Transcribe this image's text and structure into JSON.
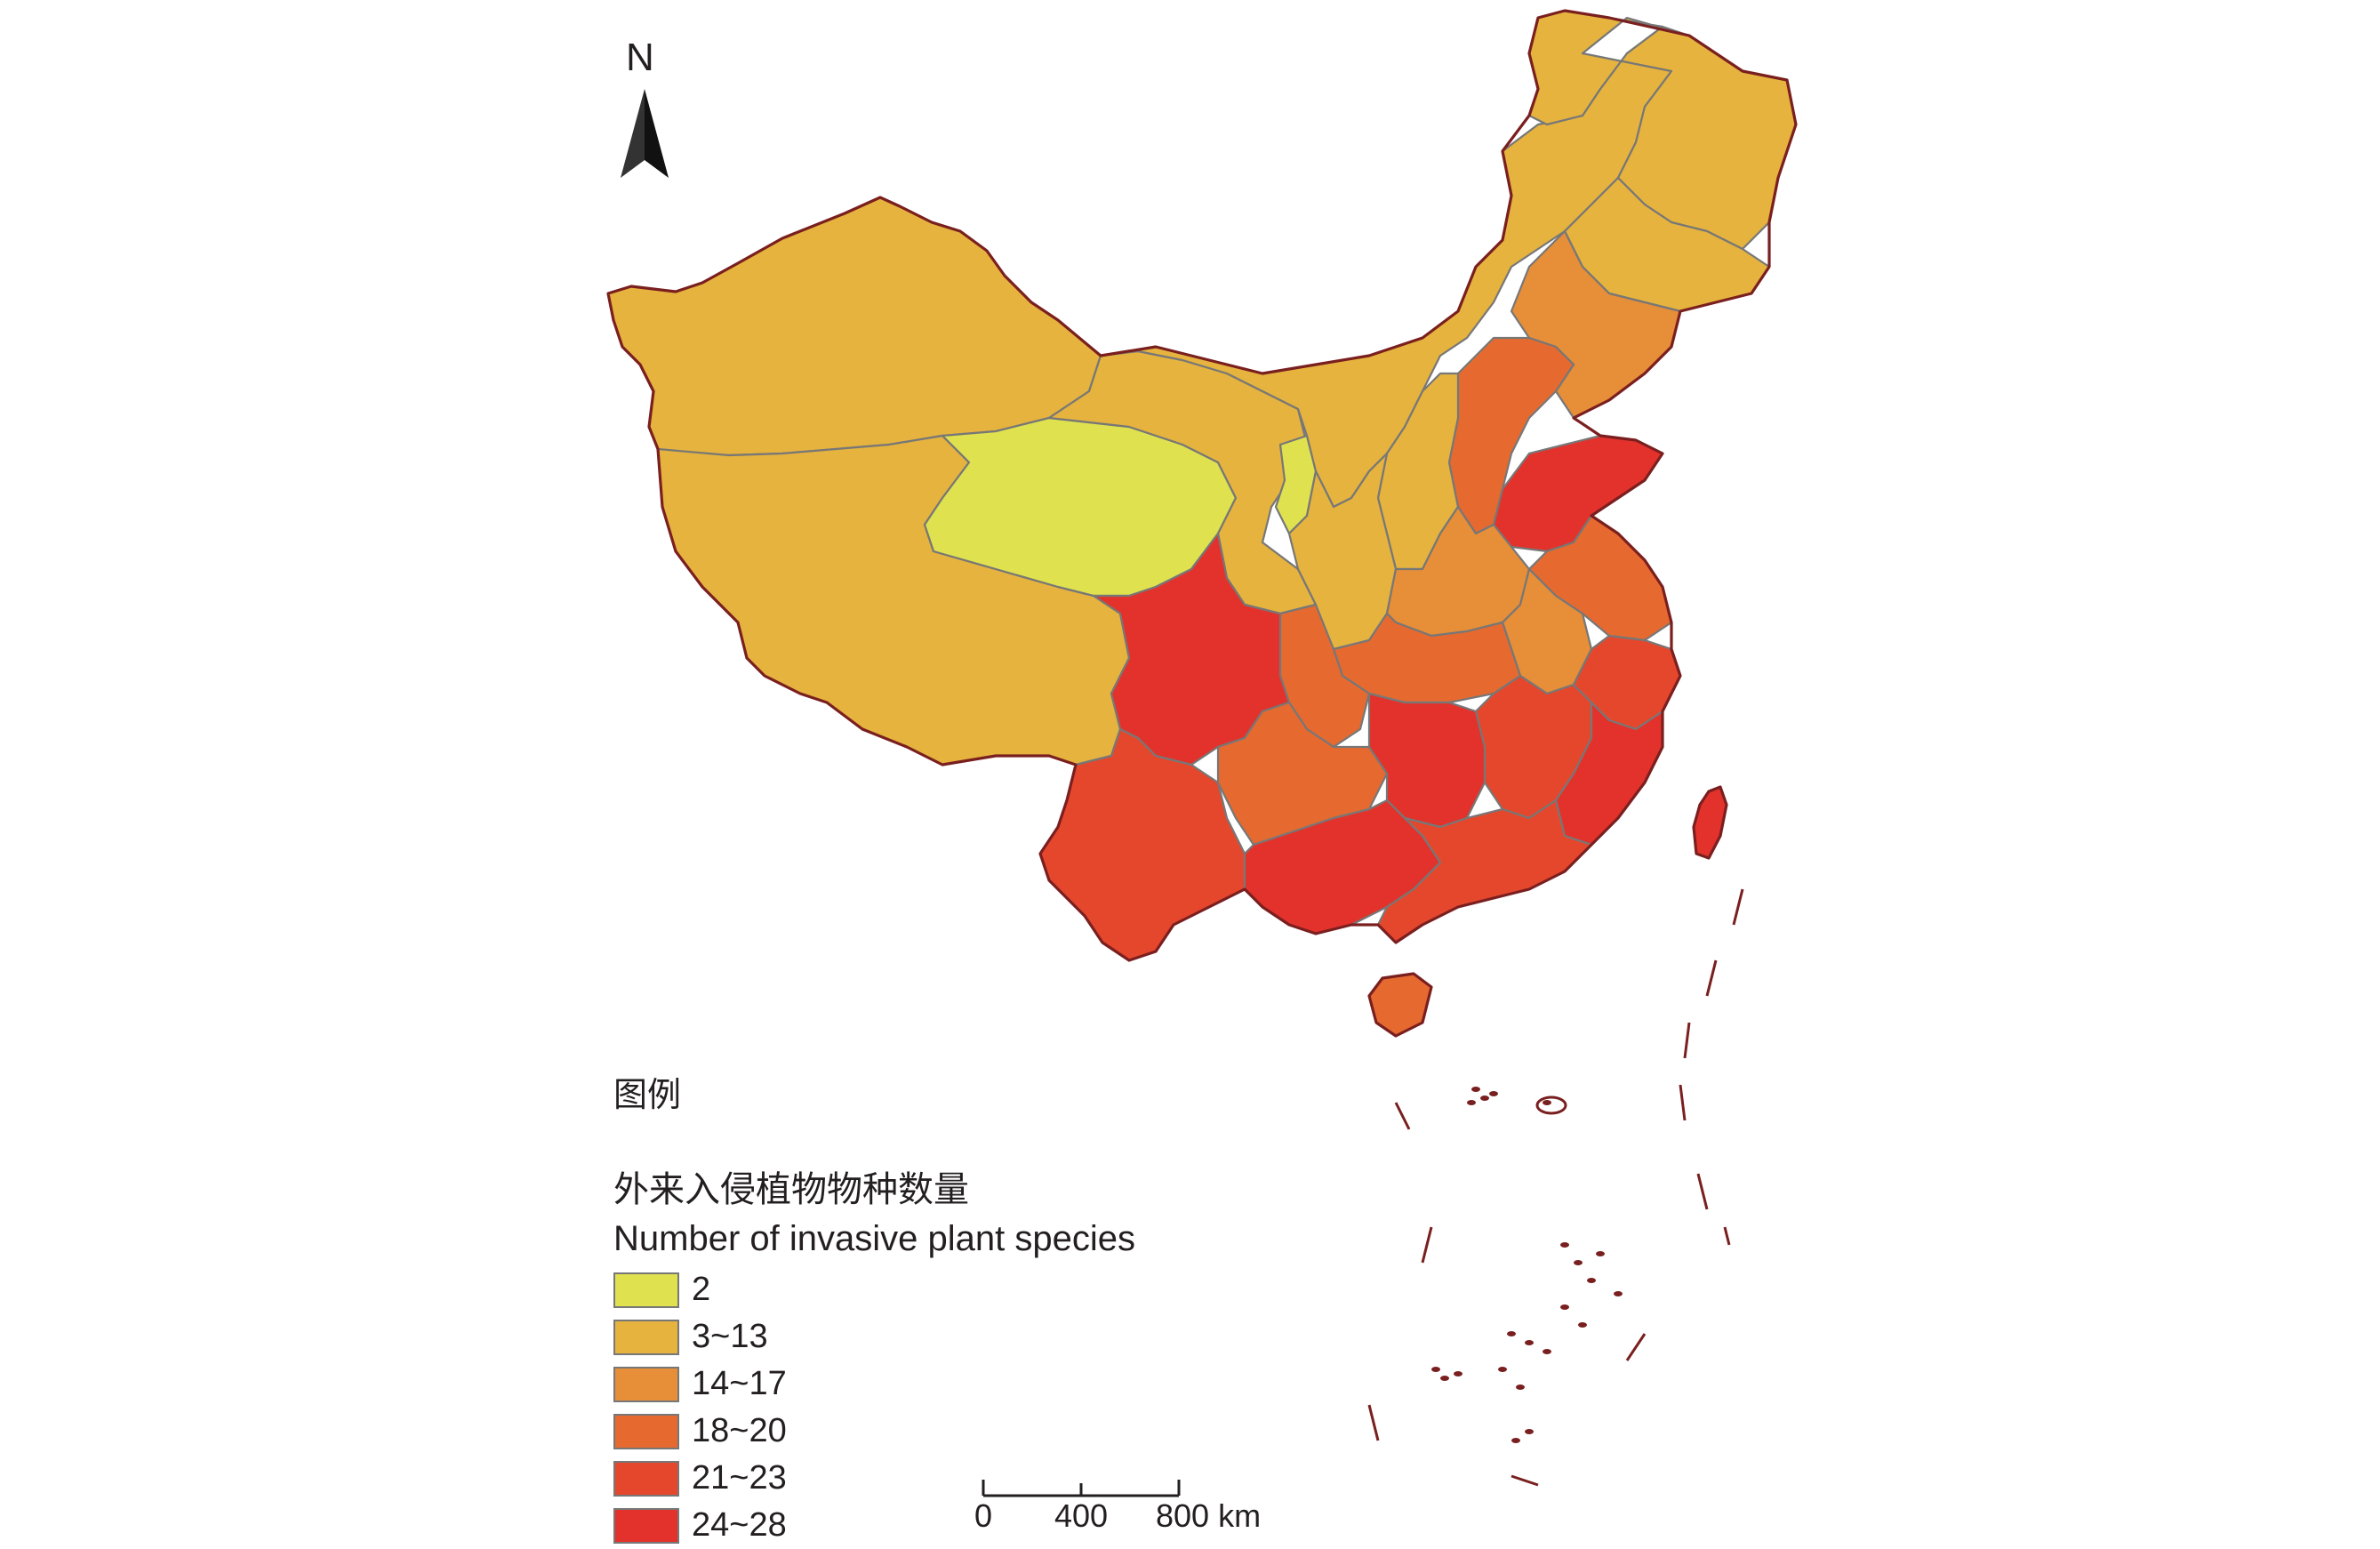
{
  "map": {
    "north_label": "N",
    "provinces": [
      {
        "name": "xinjiang",
        "class": "3~13"
      },
      {
        "name": "xizang",
        "class": "3~13"
      },
      {
        "name": "qinghai",
        "class": "2"
      },
      {
        "name": "gansu",
        "class": "3~13"
      },
      {
        "name": "ningxia",
        "class": "2"
      },
      {
        "name": "neimenggu",
        "class": "3~13"
      },
      {
        "name": "heilongjiang",
        "class": "3~13"
      },
      {
        "name": "jilin",
        "class": "3~13"
      },
      {
        "name": "liaoning",
        "class": "14~17"
      },
      {
        "name": "hebei",
        "class": "18~20"
      },
      {
        "name": "shanxi",
        "class": "3~13"
      },
      {
        "name": "shaanxi",
        "class": "3~13"
      },
      {
        "name": "shandong",
        "class": "24~28"
      },
      {
        "name": "henan",
        "class": "14~17"
      },
      {
        "name": "jiangsu",
        "class": "18~20"
      },
      {
        "name": "anhui",
        "class": "14~17"
      },
      {
        "name": "hubei",
        "class": "18~20"
      },
      {
        "name": "chongqing",
        "class": "18~20"
      },
      {
        "name": "sichuan",
        "class": "24~28"
      },
      {
        "name": "yunnan",
        "class": "21~23"
      },
      {
        "name": "guizhou",
        "class": "18~20"
      },
      {
        "name": "hunan",
        "class": "24~28"
      },
      {
        "name": "jiangxi",
        "class": "21~23"
      },
      {
        "name": "zhejiang",
        "class": "21~23"
      },
      {
        "name": "fujian",
        "class": "24~28"
      },
      {
        "name": "guangxi",
        "class": "24~28"
      },
      {
        "name": "guangdong",
        "class": "21~23"
      },
      {
        "name": "hainan",
        "class": "18~20"
      },
      {
        "name": "taiwan",
        "class": "24~28"
      }
    ]
  },
  "legend": {
    "heading": "图例",
    "title_cn": "外来入侵植物物种数量",
    "title_en": "Number of invasive plant species",
    "items": [
      {
        "label": "2",
        "color": "#dfe24e"
      },
      {
        "label": "3~13",
        "color": "#e5b33e"
      },
      {
        "label": "14~17",
        "color": "#e68e38"
      },
      {
        "label": "18~20",
        "color": "#e66a2f"
      },
      {
        "label": "21~23",
        "color": "#e5472c"
      },
      {
        "label": "24~28",
        "color": "#e3322b"
      }
    ]
  },
  "scale_bar": {
    "labels": [
      "0",
      "400",
      "800 km"
    ]
  }
}
